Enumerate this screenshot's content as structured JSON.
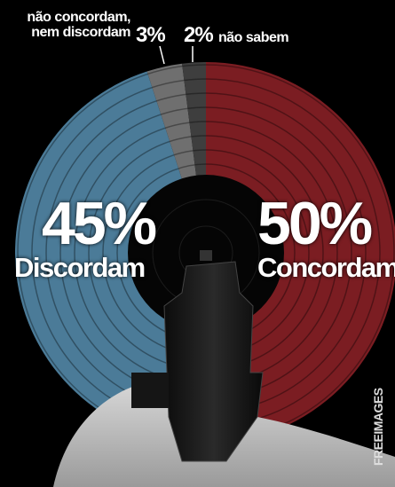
{
  "chart_data": {
    "type": "pie",
    "categories": [
      "Concordam",
      "Discordam",
      "não concordam, nem discordam",
      "não sabem"
    ],
    "values": [
      50,
      45,
      3,
      2
    ],
    "value_labels": [
      "50%",
      "45%",
      "3%",
      "2%"
    ],
    "colors": [
      "#7b1d22",
      "#4b7b98",
      "#6f6f6f",
      "#3e3e3e"
    ],
    "credit": "FREEIMAGES"
  }
}
